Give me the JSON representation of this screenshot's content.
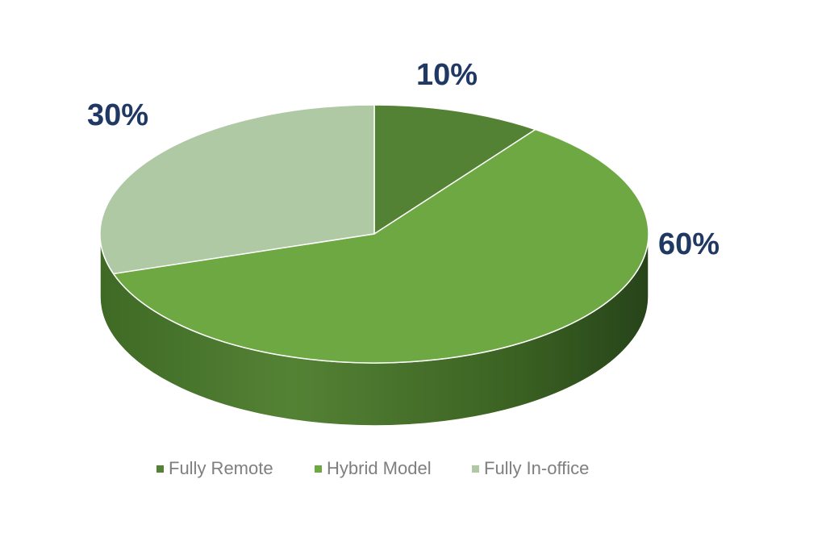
{
  "chart_data": {
    "type": "pie",
    "title": "",
    "slices": [
      {
        "label": "Fully Remote",
        "value": 10,
        "display": "10%",
        "color": "#548235"
      },
      {
        "label": "Hybrid Model",
        "value": 60,
        "display": "60%",
        "color": "#6ea843"
      },
      {
        "label": "Fully In-office",
        "value": 30,
        "display": "30%",
        "color": "#aec9a3"
      }
    ],
    "data_label_color": "#1f3864",
    "legend_position": "bottom",
    "legend_text_color": "#7f7f7f",
    "style": "3d-pie"
  }
}
